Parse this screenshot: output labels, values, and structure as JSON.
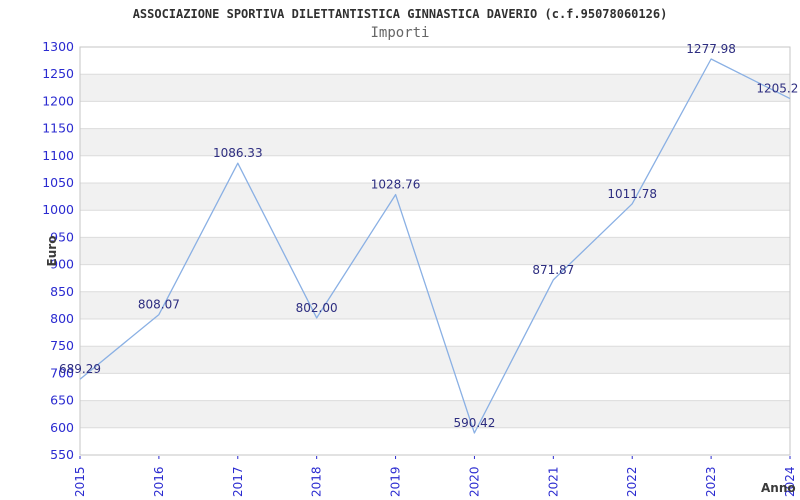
{
  "header": {
    "title": "ASSOCIAZIONE SPORTIVA DILETTANTISTICA GINNASTICA DAVERIO (c.f.95078060126)",
    "subtitle": "Importi"
  },
  "chart_data": {
    "type": "line",
    "title": "ASSOCIAZIONE SPORTIVA DILETTANTISTICA GINNASTICA DAVERIO (c.f.95078060126)",
    "subtitle": "Importi",
    "xlabel": "Anno",
    "ylabel": "Euro",
    "categories": [
      "2015",
      "2016",
      "2017",
      "2018",
      "2019",
      "2020",
      "2021",
      "2022",
      "2023",
      "2024"
    ],
    "values": [
      689.29,
      808.07,
      1086.33,
      802.0,
      1028.76,
      590.42,
      871.87,
      1011.78,
      1277.98,
      1205.2
    ],
    "point_labels": [
      "689.29",
      "808.07",
      "1086.33",
      "802.00",
      "1028.76",
      "590.42",
      "871.87",
      "1011.78",
      "1277.98",
      "1205.2"
    ],
    "last_label_clipped_at_right_edge": true,
    "ylim": [
      550,
      1300
    ],
    "ytick_step": 50,
    "yticks": [
      550,
      600,
      650,
      700,
      750,
      800,
      850,
      900,
      950,
      1000,
      1050,
      1100,
      1150,
      1200,
      1250,
      1300
    ],
    "legend": "none",
    "grid": "horizontal gridlines every 50 with alternating gray bands",
    "colors": {
      "line": "#8ab0e4",
      "axis_tick_label": "#2b2bd0",
      "point_label": "#2d2d80",
      "band_fill": "#f1f1f1",
      "gridline": "#dcdcdc",
      "plot_border": "#c6c6c6",
      "title_text": "#303030",
      "subtitle_text": "#666666",
      "axis_title_text": "#3a3a3a",
      "background": "#ffffff"
    }
  }
}
